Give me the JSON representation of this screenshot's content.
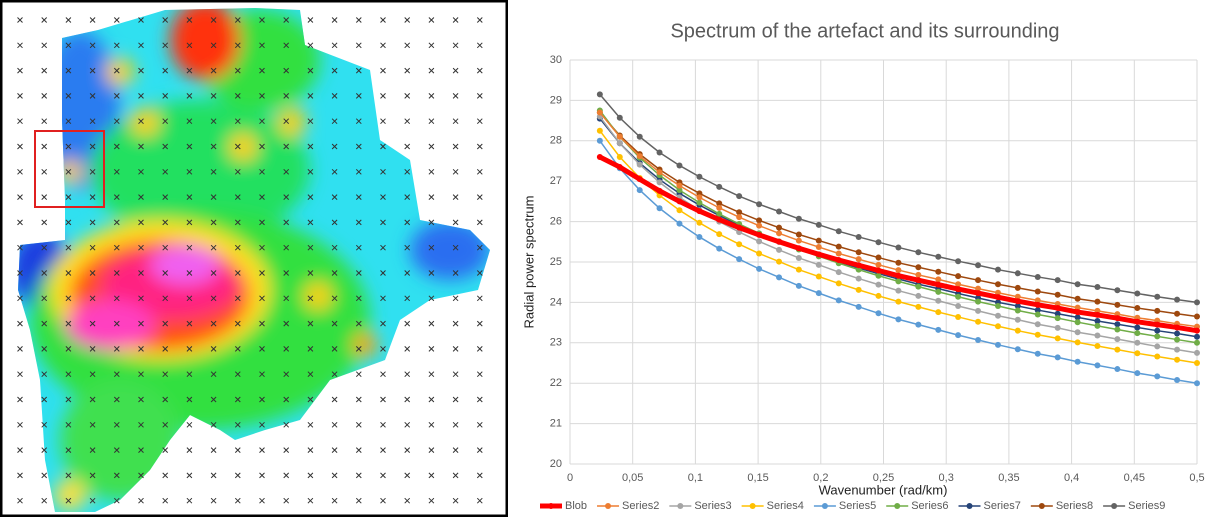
{
  "chart_data": {
    "type": "line",
    "title": "Spectrum of the artefact and its surrounding",
    "x_label": "Wavenumber (rad/km)",
    "y_label": "Radial power spectrum",
    "x": [
      0.0238,
      0.0397,
      0.0556,
      0.0714,
      0.0873,
      0.1032,
      0.119,
      0.1349,
      0.1508,
      0.1667,
      0.1825,
      0.1984,
      0.2143,
      0.2302,
      0.246,
      0.2619,
      0.2778,
      0.2937,
      0.3095,
      0.3254,
      0.3413,
      0.3571,
      0.373,
      0.3889,
      0.4048,
      0.4206,
      0.4365,
      0.4524,
      0.4683,
      0.4841,
      0.5
    ],
    "xlim": [
      0,
      0.5
    ],
    "xticks": [
      0,
      {
        "value": 0.05,
        "label": "0,05"
      },
      {
        "value": 0.1,
        "label": "0,1"
      },
      {
        "value": 0.15,
        "label": "0,15"
      },
      {
        "value": 0.2,
        "label": "0,2"
      },
      {
        "value": 0.25,
        "label": "0,25"
      },
      {
        "value": 0.3,
        "label": "0,3"
      },
      {
        "value": 0.35,
        "label": "0,35"
      },
      {
        "value": 0.4,
        "label": "0,4"
      },
      {
        "value": 0.45,
        "label": "0,45"
      },
      {
        "value": 0.5,
        "label": "0,5"
      }
    ],
    "ylim": [
      20,
      30
    ],
    "yticks": [
      20,
      21,
      22,
      23,
      24,
      25,
      26,
      27,
      28,
      29,
      30
    ],
    "grid": true,
    "legend": "bottom",
    "series": [
      {
        "name": "Blob",
        "color": "#ff0000",
        "values": [
          27.6,
          27.35,
          27.05,
          26.76,
          26.5,
          26.26,
          26.05,
          25.85,
          25.67,
          25.5,
          25.34,
          25.19,
          25.05,
          24.92,
          24.79,
          24.66,
          24.55,
          24.44,
          24.33,
          24.23,
          24.13,
          24.03,
          23.94,
          23.86,
          23.76,
          23.69,
          23.61,
          23.52,
          23.45,
          23.38,
          23.3
        ]
      },
      {
        "name": "Series2",
        "color": "#ed7d31",
        "values": [
          28.7,
          28.1,
          27.62,
          27.22,
          26.89,
          26.6,
          26.34,
          26.11,
          25.9,
          25.71,
          25.53,
          25.37,
          25.21,
          25.07,
          24.93,
          24.8,
          24.68,
          24.57,
          24.45,
          24.34,
          24.24,
          24.14,
          24.05,
          23.96,
          23.87,
          23.79,
          23.71,
          23.62,
          23.55,
          23.47,
          23.4
        ]
      },
      {
        "name": "Series3",
        "color": "#a5a5a5",
        "values": [
          28.6,
          27.94,
          27.41,
          26.97,
          26.6,
          26.28,
          26.0,
          25.74,
          25.51,
          25.3,
          25.1,
          24.93,
          24.75,
          24.59,
          24.44,
          24.29,
          24.16,
          24.04,
          23.91,
          23.79,
          23.67,
          23.57,
          23.46,
          23.37,
          23.26,
          23.18,
          23.09,
          23.0,
          22.91,
          22.83,
          22.75
        ]
      },
      {
        "name": "Series4",
        "color": "#ffc000",
        "values": [
          28.25,
          27.6,
          27.08,
          26.65,
          26.28,
          25.97,
          25.69,
          25.44,
          25.21,
          25.01,
          24.81,
          24.64,
          24.47,
          24.31,
          24.16,
          24.02,
          23.89,
          23.76,
          23.64,
          23.52,
          23.41,
          23.3,
          23.2,
          23.11,
          23.01,
          22.92,
          22.83,
          22.74,
          22.66,
          22.58,
          22.5
        ]
      },
      {
        "name": "Series5",
        "color": "#5b9bd5",
        "values": [
          28.0,
          27.32,
          26.78,
          26.33,
          25.95,
          25.62,
          25.33,
          25.07,
          24.83,
          24.62,
          24.41,
          24.23,
          24.05,
          23.89,
          23.73,
          23.58,
          23.45,
          23.32,
          23.19,
          23.07,
          22.95,
          22.84,
          22.73,
          22.64,
          22.53,
          22.44,
          22.35,
          22.25,
          22.17,
          22.08,
          22.0
        ]
      },
      {
        "name": "Series6",
        "color": "#70ad47",
        "values": [
          28.75,
          28.1,
          27.58,
          27.15,
          26.78,
          26.47,
          26.19,
          25.94,
          25.71,
          25.51,
          25.31,
          25.14,
          24.97,
          24.81,
          24.66,
          24.52,
          24.39,
          24.26,
          24.14,
          24.02,
          23.91,
          23.8,
          23.7,
          23.61,
          23.51,
          23.42,
          23.33,
          23.24,
          23.16,
          23.08,
          23.0
        ]
      },
      {
        "name": "Series7",
        "color": "#264478",
        "values": [
          28.55,
          27.94,
          27.45,
          27.04,
          26.7,
          26.41,
          26.15,
          25.91,
          25.7,
          25.5,
          25.32,
          25.16,
          25.0,
          24.85,
          24.71,
          24.58,
          24.45,
          24.34,
          24.22,
          24.11,
          24.0,
          23.91,
          23.81,
          23.72,
          23.63,
          23.54,
          23.46,
          23.38,
          23.3,
          23.23,
          23.15
        ]
      },
      {
        "name": "Series8",
        "color": "#9e480e",
        "values": [
          28.7,
          28.13,
          27.67,
          27.29,
          26.97,
          26.7,
          26.45,
          26.23,
          26.03,
          25.85,
          25.68,
          25.53,
          25.38,
          25.24,
          25.11,
          24.98,
          24.87,
          24.76,
          24.65,
          24.55,
          24.45,
          24.36,
          24.27,
          24.19,
          24.09,
          24.02,
          23.94,
          23.86,
          23.79,
          23.72,
          23.65
        ]
      },
      {
        "name": "Series9",
        "color": "#636363",
        "values": [
          29.15,
          28.57,
          28.1,
          27.71,
          27.39,
          27.11,
          26.86,
          26.63,
          26.43,
          26.25,
          26.07,
          25.92,
          25.76,
          25.62,
          25.49,
          25.36,
          25.24,
          25.13,
          25.02,
          24.92,
          24.81,
          24.72,
          24.63,
          24.55,
          24.45,
          24.38,
          24.3,
          24.22,
          24.14,
          24.07,
          24.0
        ]
      }
    ]
  }
}
